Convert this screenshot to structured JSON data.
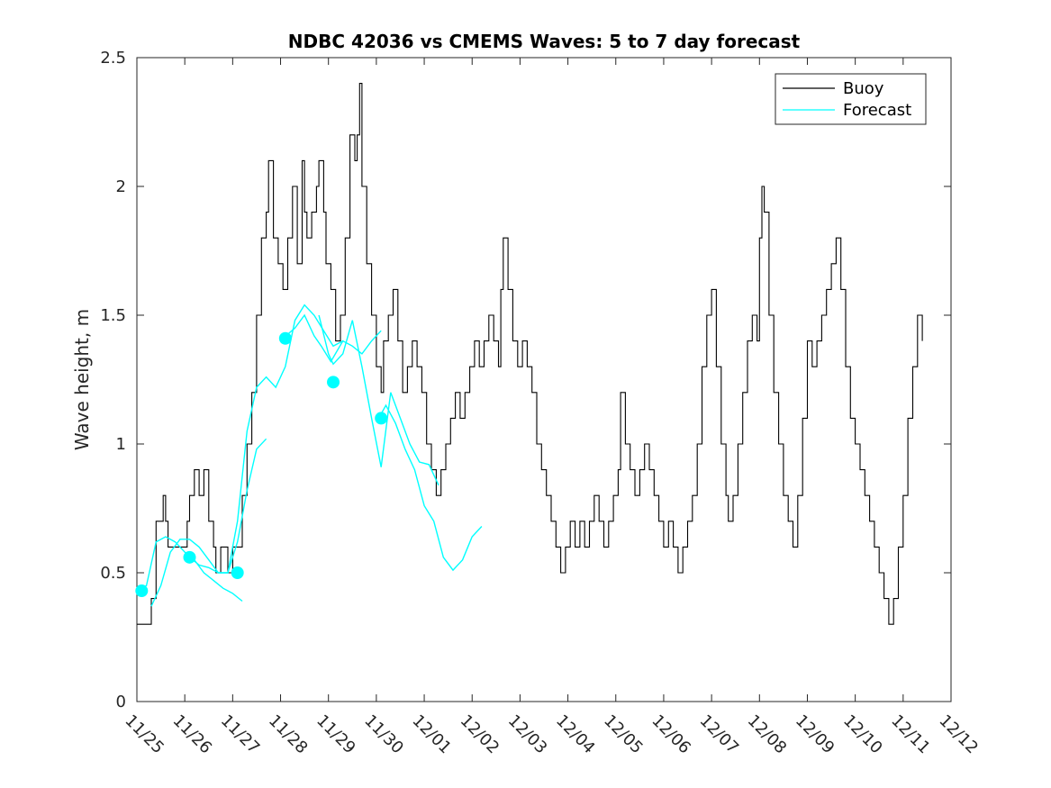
{
  "chart_data": {
    "type": "line",
    "title": "NDBC 42036 vs CMEMS Waves: 5 to 7 day forecast",
    "xlabel": "",
    "ylabel": "Wave height, m",
    "xlim": [
      0,
      17
    ],
    "ylim": [
      0,
      2.5
    ],
    "grid": false,
    "legend_position": "top-right",
    "x_ticks": [
      {
        "value": 0,
        "label": "11/25"
      },
      {
        "value": 1,
        "label": "11/26"
      },
      {
        "value": 2,
        "label": "11/27"
      },
      {
        "value": 3,
        "label": "11/28"
      },
      {
        "value": 4,
        "label": "11/29"
      },
      {
        "value": 5,
        "label": "11/30"
      },
      {
        "value": 6,
        "label": "12/01"
      },
      {
        "value": 7,
        "label": "12/02"
      },
      {
        "value": 8,
        "label": "12/03"
      },
      {
        "value": 9,
        "label": "12/04"
      },
      {
        "value": 10,
        "label": "12/05"
      },
      {
        "value": 11,
        "label": "12/06"
      },
      {
        "value": 12,
        "label": "12/07"
      },
      {
        "value": 13,
        "label": "12/08"
      },
      {
        "value": 14,
        "label": "12/09"
      },
      {
        "value": 15,
        "label": "12/10"
      },
      {
        "value": 16,
        "label": "12/11"
      },
      {
        "value": 17,
        "label": "12/12"
      }
    ],
    "y_ticks": [
      {
        "value": 0,
        "label": "0"
      },
      {
        "value": 0.5,
        "label": "0.5"
      },
      {
        "value": 1,
        "label": "1"
      },
      {
        "value": 1.5,
        "label": "1.5"
      },
      {
        "value": 2,
        "label": "2"
      },
      {
        "value": 2.5,
        "label": "2.5"
      }
    ],
    "series": [
      {
        "name": "Buoy",
        "color": "#000000",
        "style": "step",
        "points": [
          [
            0.0,
            0.3
          ],
          [
            0.3,
            0.4
          ],
          [
            0.4,
            0.7
          ],
          [
            0.55,
            0.8
          ],
          [
            0.6,
            0.7
          ],
          [
            0.65,
            0.6
          ],
          [
            0.9,
            0.6
          ],
          [
            1.05,
            0.7
          ],
          [
            1.1,
            0.8
          ],
          [
            1.2,
            0.9
          ],
          [
            1.3,
            0.8
          ],
          [
            1.4,
            0.9
          ],
          [
            1.5,
            0.7
          ],
          [
            1.6,
            0.6
          ],
          [
            1.65,
            0.5
          ],
          [
            1.75,
            0.6
          ],
          [
            1.9,
            0.5
          ],
          [
            2.0,
            0.6
          ],
          [
            2.2,
            0.8
          ],
          [
            2.3,
            1.0
          ],
          [
            2.4,
            1.2
          ],
          [
            2.5,
            1.5
          ],
          [
            2.6,
            1.8
          ],
          [
            2.7,
            1.9
          ],
          [
            2.75,
            2.1
          ],
          [
            2.85,
            1.8
          ],
          [
            2.95,
            1.7
          ],
          [
            3.05,
            1.6
          ],
          [
            3.15,
            1.8
          ],
          [
            3.25,
            2.0
          ],
          [
            3.35,
            1.7
          ],
          [
            3.45,
            2.1
          ],
          [
            3.5,
            1.9
          ],
          [
            3.55,
            1.8
          ],
          [
            3.65,
            1.9
          ],
          [
            3.75,
            2.0
          ],
          [
            3.8,
            2.1
          ],
          [
            3.9,
            1.9
          ],
          [
            3.95,
            1.7
          ],
          [
            4.05,
            1.6
          ],
          [
            4.15,
            1.4
          ],
          [
            4.25,
            1.5
          ],
          [
            4.35,
            1.8
          ],
          [
            4.45,
            2.2
          ],
          [
            4.55,
            2.1
          ],
          [
            4.6,
            2.2
          ],
          [
            4.65,
            2.4
          ],
          [
            4.7,
            2.0
          ],
          [
            4.8,
            1.7
          ],
          [
            4.9,
            1.5
          ],
          [
            5.0,
            1.3
          ],
          [
            5.1,
            1.2
          ],
          [
            5.15,
            1.4
          ],
          [
            5.25,
            1.5
          ],
          [
            5.35,
            1.6
          ],
          [
            5.45,
            1.4
          ],
          [
            5.55,
            1.2
          ],
          [
            5.65,
            1.3
          ],
          [
            5.75,
            1.4
          ],
          [
            5.85,
            1.3
          ],
          [
            5.95,
            1.2
          ],
          [
            6.05,
            1.0
          ],
          [
            6.15,
            0.9
          ],
          [
            6.25,
            0.8
          ],
          [
            6.35,
            0.9
          ],
          [
            6.45,
            1.0
          ],
          [
            6.55,
            1.1
          ],
          [
            6.65,
            1.2
          ],
          [
            6.75,
            1.1
          ],
          [
            6.85,
            1.2
          ],
          [
            6.95,
            1.3
          ],
          [
            7.05,
            1.4
          ],
          [
            7.15,
            1.3
          ],
          [
            7.25,
            1.4
          ],
          [
            7.35,
            1.5
          ],
          [
            7.45,
            1.4
          ],
          [
            7.55,
            1.3
          ],
          [
            7.6,
            1.6
          ],
          [
            7.65,
            1.8
          ],
          [
            7.75,
            1.6
          ],
          [
            7.85,
            1.4
          ],
          [
            7.95,
            1.3
          ],
          [
            8.05,
            1.4
          ],
          [
            8.15,
            1.3
          ],
          [
            8.25,
            1.2
          ],
          [
            8.35,
            1.0
          ],
          [
            8.45,
            0.9
          ],
          [
            8.55,
            0.8
          ],
          [
            8.65,
            0.7
          ],
          [
            8.75,
            0.6
          ],
          [
            8.85,
            0.5
          ],
          [
            8.95,
            0.6
          ],
          [
            9.05,
            0.7
          ],
          [
            9.15,
            0.6
          ],
          [
            9.25,
            0.7
          ],
          [
            9.35,
            0.6
          ],
          [
            9.45,
            0.7
          ],
          [
            9.55,
            0.8
          ],
          [
            9.65,
            0.7
          ],
          [
            9.75,
            0.6
          ],
          [
            9.85,
            0.7
          ],
          [
            9.95,
            0.8
          ],
          [
            10.05,
            0.9
          ],
          [
            10.1,
            1.2
          ],
          [
            10.2,
            1.0
          ],
          [
            10.3,
            0.9
          ],
          [
            10.4,
            0.8
          ],
          [
            10.5,
            0.9
          ],
          [
            10.6,
            1.0
          ],
          [
            10.7,
            0.9
          ],
          [
            10.8,
            0.8
          ],
          [
            10.9,
            0.7
          ],
          [
            11.0,
            0.6
          ],
          [
            11.1,
            0.7
          ],
          [
            11.2,
            0.6
          ],
          [
            11.3,
            0.5
          ],
          [
            11.4,
            0.6
          ],
          [
            11.5,
            0.7
          ],
          [
            11.6,
            0.8
          ],
          [
            11.7,
            1.0
          ],
          [
            11.8,
            1.3
          ],
          [
            11.9,
            1.5
          ],
          [
            12.0,
            1.6
          ],
          [
            12.1,
            1.3
          ],
          [
            12.2,
            1.0
          ],
          [
            12.3,
            0.8
          ],
          [
            12.35,
            0.7
          ],
          [
            12.45,
            0.8
          ],
          [
            12.55,
            1.0
          ],
          [
            12.65,
            1.2
          ],
          [
            12.75,
            1.4
          ],
          [
            12.85,
            1.5
          ],
          [
            12.95,
            1.4
          ],
          [
            13.0,
            1.8
          ],
          [
            13.05,
            2.0
          ],
          [
            13.1,
            1.9
          ],
          [
            13.2,
            1.5
          ],
          [
            13.3,
            1.2
          ],
          [
            13.4,
            1.0
          ],
          [
            13.5,
            0.8
          ],
          [
            13.6,
            0.7
          ],
          [
            13.7,
            0.6
          ],
          [
            13.8,
            0.8
          ],
          [
            13.9,
            1.1
          ],
          [
            14.0,
            1.4
          ],
          [
            14.1,
            1.3
          ],
          [
            14.2,
            1.4
          ],
          [
            14.3,
            1.5
          ],
          [
            14.4,
            1.6
          ],
          [
            14.5,
            1.7
          ],
          [
            14.6,
            1.8
          ],
          [
            14.7,
            1.6
          ],
          [
            14.8,
            1.3
          ],
          [
            14.9,
            1.1
          ],
          [
            15.0,
            1.0
          ],
          [
            15.1,
            0.9
          ],
          [
            15.2,
            0.8
          ],
          [
            15.3,
            0.7
          ],
          [
            15.4,
            0.6
          ],
          [
            15.5,
            0.5
          ],
          [
            15.6,
            0.4
          ],
          [
            15.7,
            0.3
          ],
          [
            15.8,
            0.4
          ],
          [
            15.9,
            0.6
          ],
          [
            16.0,
            0.8
          ],
          [
            16.1,
            1.1
          ],
          [
            16.2,
            1.3
          ],
          [
            16.3,
            1.5
          ],
          [
            16.4,
            1.4
          ]
        ]
      },
      {
        "name": "Forecast",
        "color": "#00ffff",
        "style": "line",
        "segments": [
          [
            [
              0.0,
              0.43
            ],
            [
              0.2,
              0.45
            ],
            [
              0.4,
              0.62
            ],
            [
              0.6,
              0.64
            ],
            [
              0.8,
              0.62
            ],
            [
              1.0,
              0.58
            ],
            [
              1.2,
              0.55
            ],
            [
              1.4,
              0.5
            ],
            [
              1.6,
              0.47
            ],
            [
              1.8,
              0.44
            ],
            [
              2.0,
              0.42
            ],
            [
              2.2,
              0.39
            ]
          ],
          [
            [
              0.3,
              0.37
            ],
            [
              0.5,
              0.45
            ],
            [
              0.7,
              0.58
            ],
            [
              0.9,
              0.63
            ],
            [
              1.1,
              0.63
            ],
            [
              1.3,
              0.6
            ],
            [
              1.5,
              0.55
            ],
            [
              1.7,
              0.5
            ],
            [
              1.9,
              0.5
            ],
            [
              2.1,
              0.62
            ],
            [
              2.3,
              0.82
            ],
            [
              2.5,
              0.98
            ],
            [
              2.7,
              1.02
            ]
          ],
          [
            [
              1.1,
              0.56
            ],
            [
              1.3,
              0.53
            ],
            [
              1.5,
              0.52
            ],
            [
              1.7,
              0.5
            ],
            [
              1.9,
              0.5
            ],
            [
              2.1,
              0.7
            ],
            [
              2.3,
              1.05
            ],
            [
              2.5,
              1.22
            ],
            [
              2.7,
              1.26
            ],
            [
              2.9,
              1.22
            ],
            [
              3.1,
              1.3
            ],
            [
              3.3,
              1.48
            ],
            [
              3.5,
              1.54
            ],
            [
              3.7,
              1.5
            ],
            [
              3.9,
              1.44
            ],
            [
              4.1,
              1.38
            ],
            [
              4.3,
              1.4
            ]
          ],
          [
            [
              3.05,
              1.41
            ],
            [
              3.3,
              1.45
            ],
            [
              3.5,
              1.5
            ],
            [
              3.7,
              1.42
            ],
            [
              3.85,
              1.38
            ],
            [
              4.05,
              1.32
            ],
            [
              4.3,
              1.4
            ],
            [
              4.5,
              1.38
            ],
            [
              4.7,
              1.35
            ],
            [
              4.9,
              1.4
            ],
            [
              5.1,
              1.44
            ]
          ],
          [
            [
              3.8,
              1.5
            ],
            [
              4.0,
              1.35
            ],
            [
              4.1,
              1.31
            ],
            [
              4.3,
              1.35
            ],
            [
              4.5,
              1.48
            ],
            [
              4.7,
              1.3
            ],
            [
              4.9,
              1.1
            ],
            [
              5.1,
              0.91
            ],
            [
              5.3,
              1.2
            ],
            [
              5.5,
              1.1
            ],
            [
              5.7,
              1.0
            ],
            [
              5.9,
              0.93
            ],
            [
              6.1,
              0.92
            ],
            [
              6.3,
              0.84
            ]
          ],
          [
            [
              5.05,
              1.1
            ],
            [
              5.2,
              1.15
            ],
            [
              5.4,
              1.08
            ],
            [
              5.6,
              0.98
            ],
            [
              5.8,
              0.9
            ],
            [
              6.0,
              0.76
            ],
            [
              6.2,
              0.7
            ],
            [
              6.4,
              0.56
            ],
            [
              6.6,
              0.51
            ],
            [
              6.8,
              0.55
            ],
            [
              7.0,
              0.64
            ],
            [
              7.2,
              0.68
            ]
          ]
        ],
        "markers": [
          [
            0.1,
            0.43
          ],
          [
            1.1,
            0.56
          ],
          [
            2.1,
            0.5
          ],
          [
            3.1,
            1.41
          ],
          [
            4.1,
            1.24
          ],
          [
            5.1,
            1.1
          ]
        ]
      }
    ]
  }
}
